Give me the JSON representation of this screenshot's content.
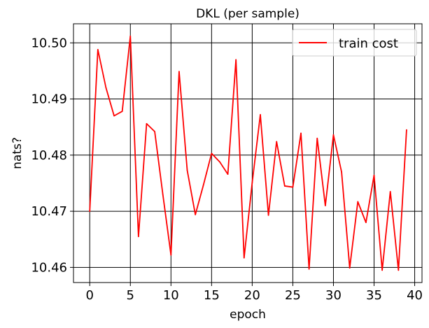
{
  "chart_data": {
    "type": "line",
    "title": "DKL (per sample)",
    "xlabel": "epoch",
    "ylabel": "nats?",
    "xlim": [
      -2,
      40.9
    ],
    "ylim": [
      10.4573,
      10.5034
    ],
    "grid": true,
    "legend_position": "top-right",
    "x_ticks": [
      0,
      5,
      10,
      15,
      20,
      25,
      30,
      35,
      40
    ],
    "y_ticks": [
      10.46,
      10.47,
      10.48,
      10.49,
      10.5
    ],
    "y_tick_labels": [
      "10.46",
      "10.47",
      "10.48",
      "10.49",
      "10.50"
    ],
    "series": [
      {
        "name": "train cost",
        "color": "#ff0000",
        "x": [
          0,
          1,
          2,
          3,
          4,
          5,
          6,
          7,
          8,
          9,
          10,
          11,
          12,
          13,
          14,
          15,
          16,
          17,
          18,
          19,
          20,
          21,
          22,
          23,
          24,
          25,
          26,
          27,
          28,
          29,
          30,
          31,
          32,
          33,
          34,
          35,
          36,
          37,
          38,
          39
        ],
        "values": [
          10.47,
          10.4988,
          10.492,
          10.487,
          10.4878,
          10.5012,
          10.4655,
          10.4856,
          10.4842,
          10.473,
          10.4622,
          10.4949,
          10.4773,
          10.4694,
          10.4747,
          10.4803,
          10.4788,
          10.4766,
          10.497,
          10.4617,
          10.4751,
          10.4872,
          10.4693,
          10.4824,
          10.4745,
          10.4743,
          10.4839,
          10.4597,
          10.483,
          10.471,
          10.4836,
          10.477,
          10.4599,
          10.4717,
          10.468,
          10.4764,
          10.4595,
          10.4735,
          10.4595,
          10.4845
        ]
      }
    ]
  }
}
